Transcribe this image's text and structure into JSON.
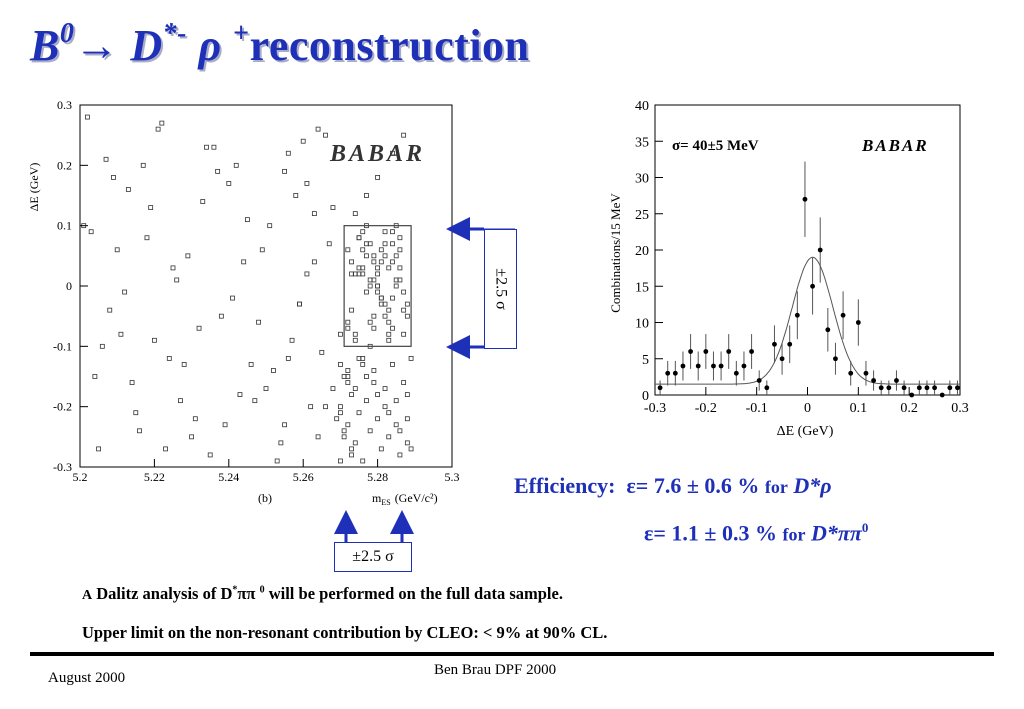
{
  "slide": {
    "title": {
      "b": "B",
      "b_sup": "0",
      "arrow": "→",
      "d": "D",
      "d_sup": "*-",
      "rho": "ρ",
      "rho_sup": "+",
      "word": "reconstruction"
    },
    "efficiency": {
      "label": "Efficiency:",
      "line1_value": "ε= 7.6 ± 0.6 %",
      "line1_for": "for",
      "line1_channel": "D*ρ",
      "line2_value": "ε=  1.1 ± 0.3 %",
      "line2_for": "for",
      "line2_channel": "D*ππ",
      "line2_channel_sup": "0"
    },
    "notes": {
      "line1_prefix": "A",
      "line1_main": "Dalitz analysis of D",
      "line1_sup": "*",
      "line1_pi": "ππ",
      "line1_sup2": "0",
      "line1_rest": "will be performed on the full data sample.",
      "line2": "Upper limit on the non-resonant contribution by CLEO: < 9% at 90% CL."
    },
    "footer": {
      "date": "August  2000",
      "author": "Ben Brau  DPF 2000"
    },
    "sigma_box_right": "±2.5 σ",
    "sigma_box_bottom": "±2.5 σ",
    "arrow_color": "#1e2fb8"
  },
  "chart_data": [
    {
      "type": "scatter",
      "xlabel": "m",
      "xlabel_sub": "ES",
      "xlabel_unit": "(GeV/c²)",
      "ylabel": "ΔE (GeV)",
      "xlim": [
        5.2,
        5.3
      ],
      "ylim": [
        -0.3,
        0.3
      ],
      "xticks": [
        "5.2",
        "5.22",
        "5.24",
        "5.26",
        "5.28",
        "5.3"
      ],
      "yticks": [
        "-0.3",
        "-0.2",
        "-0.1",
        "0",
        "0.1",
        "0.2",
        "0.3"
      ],
      "caption": "(b)",
      "logo": "BABAR",
      "signal_box": {
        "x": [
          5.271,
          5.289
        ],
        "y": [
          -0.1,
          0.1
        ]
      },
      "points_x": [
        5.202,
        5.207,
        5.213,
        5.222,
        5.229,
        5.236,
        5.245,
        5.255,
        5.261,
        5.266,
        5.208,
        5.218,
        5.224,
        5.233,
        5.241,
        5.249,
        5.257,
        5.263,
        5.204,
        5.211,
        5.227,
        5.238,
        5.252,
        5.259,
        5.265,
        5.216,
        5.231,
        5.243,
        5.254,
        5.262,
        5.205,
        5.215,
        5.225,
        5.235,
        5.246,
        5.256,
        5.264,
        5.209,
        5.221,
        5.232,
        5.242,
        5.251,
        5.258,
        5.267,
        5.203,
        5.214,
        5.226,
        5.239,
        5.248,
        5.26,
        5.268,
        5.206,
        5.219,
        5.23,
        5.244,
        5.253,
        5.261,
        5.269,
        5.212,
        5.223,
        5.237,
        5.247,
        5.256,
        5.263,
        5.27,
        5.201,
        5.217,
        5.228,
        5.234,
        5.25,
        5.259,
        5.266,
        5.21,
        5.22,
        5.24,
        5.255,
        5.264,
        5.268,
        5.272,
        5.275,
        5.278,
        5.281,
        5.284,
        5.287,
        5.273,
        5.276,
        5.279,
        5.282,
        5.285,
        5.288,
        5.274,
        5.277,
        5.28,
        5.283,
        5.286,
        5.272,
        5.275,
        5.278,
        5.281,
        5.284,
        5.287,
        5.273,
        5.276,
        5.279,
        5.282,
        5.285,
        5.274,
        5.277,
        5.28,
        5.283,
        5.286,
        5.275,
        5.278,
        5.281,
        5.284,
        5.276,
        5.279,
        5.282,
        5.285,
        5.277,
        5.28,
        5.283,
        5.278,
        5.281,
        5.284,
        5.279,
        5.282,
        5.28,
        5.283,
        5.275,
        5.286,
        5.272,
        5.288,
        5.276,
        5.282,
        5.279,
        5.285,
        5.273,
        5.287,
        5.28,
        5.277,
        5.283,
        5.281,
        5.274,
        5.286,
        5.278,
        5.284,
        5.276,
        5.272,
        5.288,
        5.27,
        5.271,
        5.273,
        5.276,
        5.279,
        5.282,
        5.285,
        5.288,
        5.27,
        5.272,
        5.274,
        5.277,
        5.28,
        5.283,
        5.286,
        5.289,
        5.271,
        5.273,
        5.275,
        5.278,
        5.281,
        5.284,
        5.287,
        5.27,
        5.272,
        5.274,
        5.276,
        5.279,
        5.282,
        5.285,
        5.288,
        5.271,
        5.273,
        5.275,
        5.277,
        5.28,
        5.283,
        5.286,
        5.289,
        5.27,
        5.272,
        5.274,
        5.277,
        5.28,
        5.284,
        5.287
      ],
      "points_y": [
        0.28,
        0.21,
        0.16,
        0.27,
        0.05,
        0.23,
        0.11,
        0.19,
        0.02,
        0.25,
        -0.04,
        0.08,
        -0.12,
        0.14,
        -0.02,
        0.06,
        -0.09,
        0.12,
        -0.15,
        -0.08,
        -0.19,
        -0.05,
        -0.14,
        -0.03,
        -0.11,
        -0.24,
        -0.22,
        -0.18,
        -0.26,
        -0.2,
        -0.27,
        -0.21,
        0.03,
        -0.28,
        -0.13,
        0.22,
        -0.25,
        0.18,
        0.26,
        -0.07,
        0.2,
        0.1,
        0.15,
        0.07,
        0.09,
        -0.16,
        0.01,
        -0.23,
        -0.06,
        0.24,
        -0.17,
        -0.1,
        0.13,
        -0.25,
        0.04,
        -0.29,
        0.17,
        -0.22,
        -0.01,
        -0.27,
        0.19,
        -0.19,
        -0.12,
        0.04,
        -0.08,
        0.1,
        0.2,
        -0.13,
        0.23,
        -0.17,
        -0.03,
        -0.2,
        0.06,
        -0.09,
        0.17,
        -0.23,
        0.26,
        0.13,
        0.06,
        0.02,
        0.0,
        -0.02,
        0.04,
        -0.01,
        -0.04,
        0.03,
        0.01,
        -0.03,
        0.05,
        -0.05,
        0.02,
        0.07,
        0.0,
        -0.06,
        0.03,
        -0.07,
        0.08,
        0.01,
        -0.02,
        0.09,
        -0.08,
        0.04,
        0.06,
        -0.05,
        0.07,
        0.1,
        -0.09,
        0.05,
        0.02,
        -0.04,
        0.08,
        0.03,
        -0.06,
        -0.03,
        -0.07,
        0.02,
        0.05,
        0.09,
        0.01,
        -0.01,
        0.0,
        -0.08,
        0.07,
        0.06,
        -0.02,
        0.04,
        -0.05,
        0.03,
        -0.09,
        0.08,
        0.01,
        -0.06,
        -0.03,
        0.09,
        0.05,
        -0.07,
        0.0,
        0.02,
        -0.04,
        -0.01,
        0.1,
        0.03,
        0.04,
        -0.08,
        0.06,
        -0.1,
        0.07,
        -0.12,
        -0.15,
        -0.18,
        -0.21,
        -0.24,
        -0.27,
        -0.13,
        -0.16,
        -0.2,
        -0.23,
        -0.26,
        -0.29,
        -0.14,
        -0.17,
        -0.19,
        -0.22,
        -0.25,
        -0.28,
        -0.12,
        -0.15,
        -0.18,
        -0.21,
        -0.24,
        -0.27,
        -0.13,
        -0.16,
        -0.2,
        -0.23,
        -0.26,
        -0.29,
        -0.14,
        -0.17,
        -0.19,
        -0.22,
        -0.25,
        -0.28,
        -0.12,
        -0.15,
        -0.18,
        -0.21,
        -0.24,
        -0.27,
        -0.13,
        -0.16,
        0.12,
        0.15,
        0.18,
        0.22,
        0.25,
        0.13,
        0.16,
        0.19,
        0.21,
        0.24,
        0.14
      ]
    },
    {
      "type": "scatter",
      "xlabel": "ΔE (GeV)",
      "ylabel": "Combinations/15 MeV",
      "xlim": [
        -0.3,
        0.3
      ],
      "ylim": [
        0,
        40
      ],
      "xticks": [
        "-0.3",
        "-0.2",
        "-0.1",
        "0",
        "0.1",
        "0.2",
        "0.3"
      ],
      "yticks": [
        "0",
        "5",
        "10",
        "15",
        "20",
        "25",
        "30",
        "35",
        "40"
      ],
      "annotation": "σ= 40±5 MeV",
      "logo": "BABAR",
      "x": [
        -0.29,
        -0.275,
        -0.26,
        -0.245,
        -0.23,
        -0.215,
        -0.2,
        -0.185,
        -0.17,
        -0.155,
        -0.14,
        -0.125,
        -0.11,
        -0.095,
        -0.08,
        -0.065,
        -0.05,
        -0.035,
        -0.02,
        -0.005,
        0.01,
        0.025,
        0.04,
        0.055,
        0.07,
        0.085,
        0.1,
        0.115,
        0.13,
        0.145,
        0.16,
        0.175,
        0.19,
        0.205,
        0.22,
        0.235,
        0.25,
        0.265,
        0.28,
        0.295
      ],
      "y": [
        1,
        3,
        3,
        4,
        6,
        4,
        6,
        4,
        4,
        6,
        3,
        4,
        6,
        2,
        1,
        7,
        5,
        7,
        11,
        27,
        15,
        20,
        9,
        5,
        11,
        3,
        10,
        3,
        2,
        1,
        1,
        2,
        1,
        0,
        1,
        1,
        1,
        0,
        1,
        1
      ],
      "yerr": [
        1,
        1.7,
        1.7,
        2,
        2.4,
        2,
        2.4,
        2,
        2,
        2.4,
        1.7,
        2,
        2.4,
        1.4,
        1,
        2.6,
        2.2,
        2.6,
        3.3,
        5.2,
        3.9,
        4.5,
        3,
        2.2,
        3.3,
        1.7,
        3.2,
        1.7,
        1.4,
        1,
        1,
        1.4,
        1,
        0,
        1,
        1,
        1,
        0,
        1,
        1
      ],
      "fit": {
        "mean": 0.01,
        "sigma": 0.04,
        "amplitude": 17.5,
        "background": 1.5
      }
    }
  ]
}
